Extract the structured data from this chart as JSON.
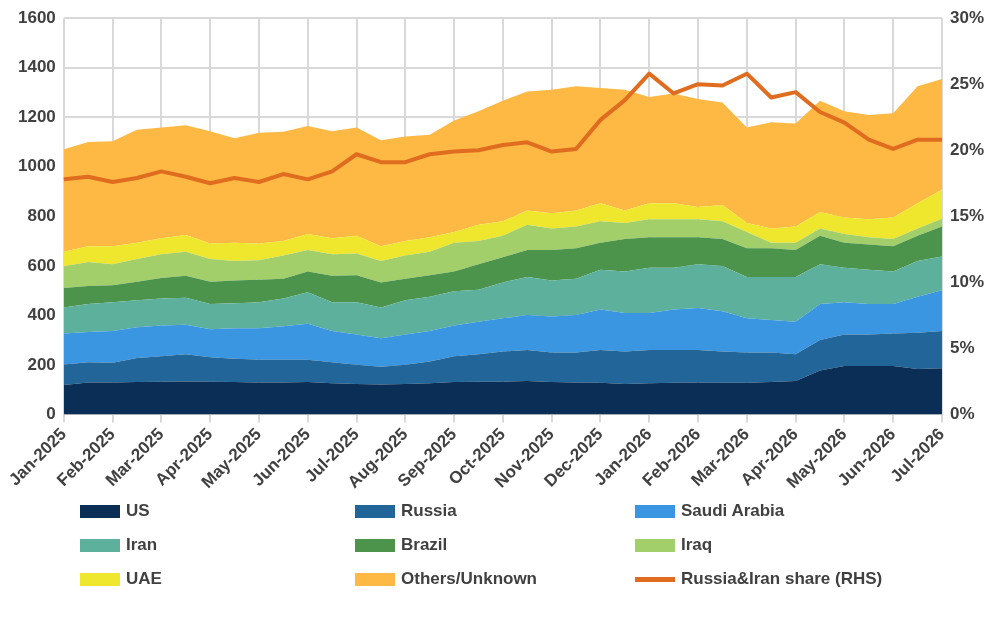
{
  "chart_data": {
    "type": "area",
    "stacked": true,
    "legend": "bottom",
    "grid": true,
    "marker": "none",
    "categories": [
      "Jan-2025",
      null,
      "Feb-2025",
      null,
      "Mar-2025",
      null,
      "Apr-2025",
      null,
      "May-2025",
      null,
      "Jun-2025",
      null,
      "Jul-2025",
      null,
      "Aug-2025",
      null,
      "Sep-2025",
      null,
      "Oct-2025",
      null,
      "Nov-2025",
      null,
      "Dec-2025",
      null,
      "Jan-2026",
      null,
      "Feb-2026",
      null,
      "Mar-2026",
      null,
      "Apr-2026",
      null,
      "May-2026",
      null,
      "Jun-2026",
      null,
      "Jul-2026"
    ],
    "ylim": [
      0,
      1600
    ],
    "yticks": [
      0,
      200,
      400,
      600,
      800,
      1000,
      1200,
      1400,
      1600
    ],
    "y2lim": [
      0,
      30
    ],
    "y2ticks": [
      {
        "value": 0,
        "label": "0%"
      },
      {
        "value": 5,
        "label": "5%"
      },
      {
        "value": 10,
        "label": "10%"
      },
      {
        "value": 15,
        "label": "15%"
      },
      {
        "value": 20,
        "label": "20%"
      },
      {
        "value": 25,
        "label": "25%"
      },
      {
        "value": 30,
        "label": "30%"
      }
    ],
    "series": [
      {
        "name": "US",
        "color": "#0b2e57",
        "values": [
          119,
          129,
          129,
          131,
          132,
          133,
          132,
          131,
          129,
          129,
          131,
          126,
          123,
          121,
          123,
          126,
          131,
          132,
          132,
          135,
          131,
          129,
          128,
          123,
          126,
          128,
          129,
          128,
          128,
          131,
          135,
          177,
          196,
          196,
          196,
          184,
          187
        ]
      },
      {
        "name": "Russia",
        "color": "#226699",
        "values": [
          83,
          82,
          80,
          97,
          103,
          110,
          99,
          94,
          92,
          92,
          90,
          85,
          78,
          72,
          78,
          88,
          104,
          111,
          122,
          125,
          119,
          121,
          132,
          131,
          134,
          132,
          131,
          126,
          122,
          119,
          108,
          124,
          127,
          127,
          131,
          146,
          150
        ]
      },
      {
        "name": "Saudi Arabia",
        "color": "#3a96e0",
        "values": [
          125,
          122,
          128,
          124,
          124,
          119,
          113,
          123,
          127,
          135,
          145,
          126,
          122,
          115,
          122,
          123,
          124,
          131,
          134,
          142,
          145,
          152,
          164,
          156,
          150,
          164,
          170,
          163,
          138,
          131,
          131,
          145,
          130,
          123,
          119,
          145,
          164
        ]
      },
      {
        "name": "Iran",
        "color": "#5db09c",
        "values": [
          105,
          113,
          116,
          109,
          109,
          109,
          102,
          101,
          105,
          112,
          127,
          116,
          130,
          124,
          138,
          138,
          138,
          130,
          145,
          153,
          146,
          146,
          160,
          167,
          182,
          168,
          176,
          182,
          167,
          174,
          181,
          160,
          139,
          138,
          131,
          145,
          137
        ]
      },
      {
        "name": "Brazil",
        "color": "#4c944c",
        "values": [
          79,
          73,
          69,
          75,
          83,
          89,
          90,
          92,
          91,
          80,
          84,
          107,
          109,
          101,
          87,
          87,
          80,
          102,
          102,
          109,
          123,
          123,
          109,
          131,
          123,
          123,
          109,
          109,
          116,
          116,
          109,
          116,
          101,
          102,
          102,
          102,
          121
        ]
      },
      {
        "name": "Iraq",
        "color": "#a3cf6a",
        "values": [
          87,
          97,
          84,
          92,
          96,
          97,
          92,
          79,
          79,
          94,
          87,
          87,
          88,
          87,
          94,
          95,
          116,
          94,
          87,
          102,
          87,
          88,
          87,
          65,
          73,
          73,
          73,
          72,
          66,
          22,
          29,
          29,
          36,
          29,
          29,
          29,
          31
        ]
      },
      {
        "name": "UAE",
        "color": "#eee72d",
        "values": [
          59,
          63,
          73,
          65,
          64,
          68,
          62,
          73,
          67,
          58,
          65,
          64,
          72,
          59,
          58,
          58,
          44,
          66,
          58,
          58,
          61,
          65,
          73,
          51,
          65,
          65,
          50,
          66,
          36,
          58,
          66,
          66,
          66,
          73,
          87,
          102,
          117
        ]
      },
      {
        "name": "Others/Unknown",
        "color": "#fdb944",
        "values": [
          414,
          421,
          424,
          457,
          448,
          443,
          454,
          422,
          447,
          441,
          436,
          433,
          437,
          428,
          422,
          414,
          450,
          458,
          487,
          480,
          499,
          501,
          465,
          487,
          429,
          443,
          436,
          414,
          386,
          429,
          416,
          450,
          429,
          421,
          421,
          472,
          448
        ]
      },
      {
        "name": "Russia&Iran share (RHS)",
        "color": "#e06c1f",
        "type": "line",
        "axis": "y2",
        "values": [
          17.8,
          18.0,
          17.6,
          17.9,
          18.4,
          18.0,
          17.5,
          17.9,
          17.6,
          18.2,
          17.8,
          18.4,
          19.7,
          19.1,
          19.1,
          19.7,
          19.9,
          20.0,
          20.4,
          20.6,
          19.9,
          20.1,
          22.3,
          23.8,
          25.8,
          24.3,
          25.0,
          24.9,
          25.8,
          24.0,
          24.4,
          22.9,
          22.1,
          20.8,
          20.1,
          20.8,
          20.8
        ]
      }
    ]
  }
}
